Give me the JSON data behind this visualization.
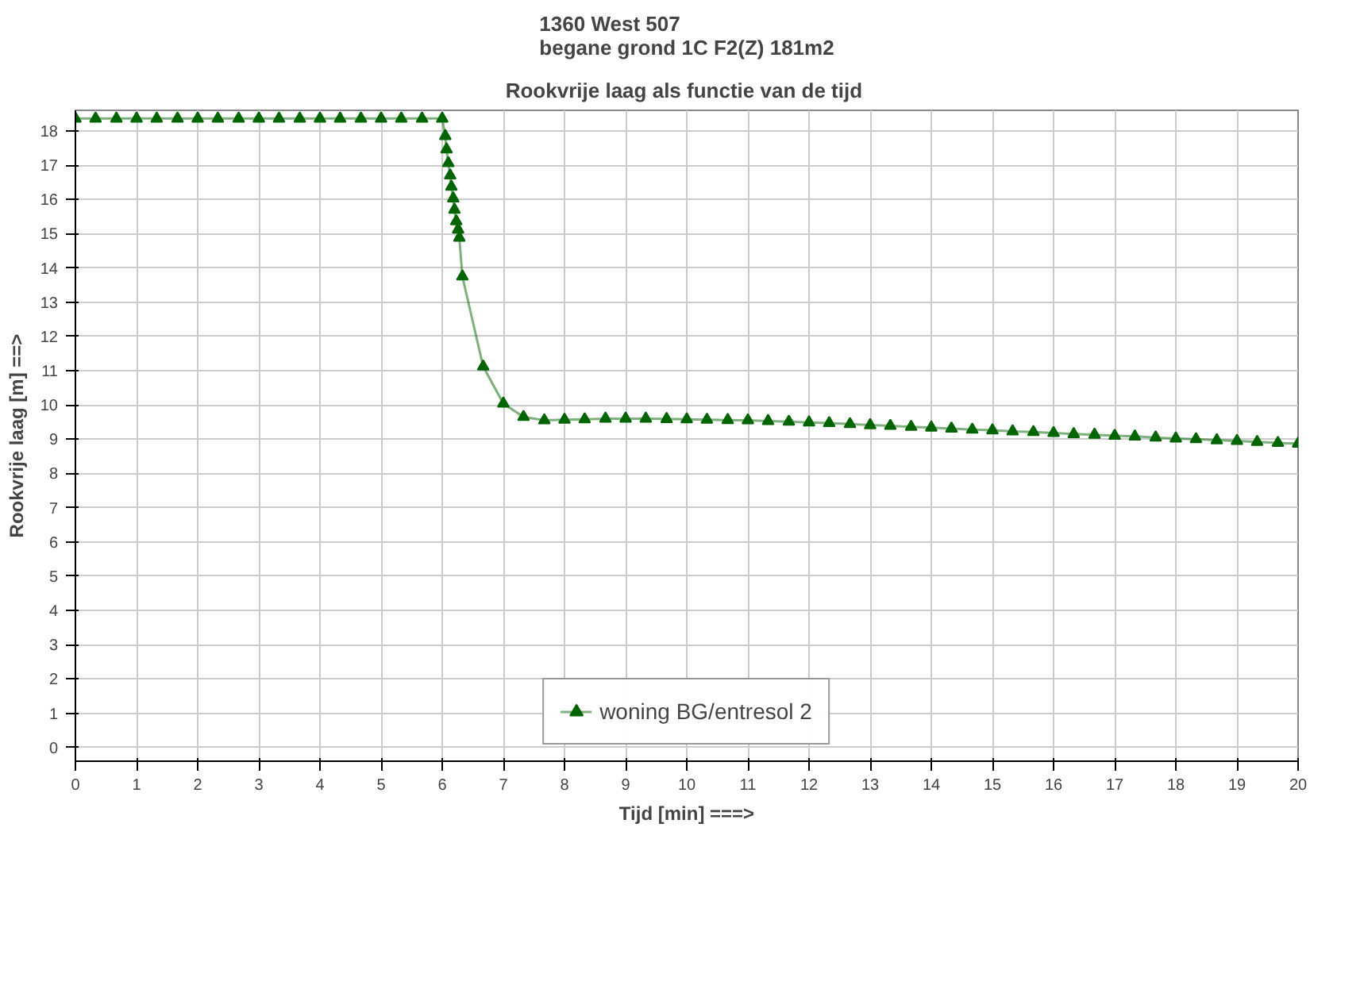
{
  "chart_data": {
    "type": "line",
    "title": "1360 West 507\nbegane grond 1C F2(Z) 181m2",
    "subtitle": "Rookvrije laag  als functie van de tijd",
    "xlabel": "Tijd [min] ===>",
    "ylabel": "Rookvrije laag [m] ==>",
    "x": [
      0,
      0.33,
      0.67,
      1,
      1.33,
      1.67,
      2,
      2.33,
      2.67,
      3,
      3.33,
      3.67,
      4,
      4.33,
      4.67,
      5,
      5.33,
      5.67,
      6,
      6.05,
      6.07,
      6.1,
      6.13,
      6.15,
      6.18,
      6.2,
      6.23,
      6.26,
      6.28,
      6.33,
      6.67,
      7,
      7.33,
      7.67,
      8,
      8.33,
      8.67,
      9,
      9.33,
      9.67,
      10,
      10.33,
      10.67,
      11,
      11.33,
      11.67,
      12,
      12.33,
      12.67,
      13,
      13.33,
      13.67,
      14,
      14.33,
      14.67,
      15,
      15.33,
      15.67,
      16,
      16.33,
      16.67,
      17,
      17.33,
      17.67,
      18,
      18.33,
      18.67,
      19,
      19.33,
      19.67,
      20
    ],
    "series": [
      {
        "name": "woning BG/entresol 2",
        "color": "#006400",
        "values": [
          18.36,
          18.36,
          18.36,
          18.36,
          18.36,
          18.36,
          18.36,
          18.36,
          18.36,
          18.36,
          18.36,
          18.36,
          18.36,
          18.36,
          18.36,
          18.36,
          18.36,
          18.36,
          18.36,
          17.85,
          17.46,
          17.06,
          16.7,
          16.37,
          16.03,
          15.7,
          15.36,
          15.12,
          14.88,
          13.75,
          11.12,
          10.04,
          9.65,
          9.55,
          9.57,
          9.58,
          9.6,
          9.6,
          9.6,
          9.59,
          9.58,
          9.57,
          9.56,
          9.55,
          9.53,
          9.51,
          9.49,
          9.47,
          9.44,
          9.41,
          9.39,
          9.36,
          9.34,
          9.31,
          9.28,
          9.26,
          9.23,
          9.21,
          9.18,
          9.15,
          9.13,
          9.1,
          9.08,
          9.05,
          9.02,
          9,
          8.97,
          8.95,
          8.92,
          8.89,
          8.87
        ]
      }
    ],
    "xlim": [
      0,
      20
    ],
    "ylim": [
      -0.4,
      18.6
    ],
    "xticks": [
      0,
      1,
      2,
      3,
      4,
      5,
      6,
      7,
      8,
      9,
      10,
      11,
      12,
      13,
      14,
      15,
      16,
      17,
      18,
      19,
      20
    ],
    "yticks": [
      0,
      1,
      2,
      3,
      4,
      5,
      6,
      7,
      8,
      9,
      10,
      11,
      12,
      13,
      14,
      15,
      16,
      17,
      18
    ],
    "grid": true,
    "legend": "bottom",
    "marker": "triangle",
    "line_style": "solid"
  }
}
